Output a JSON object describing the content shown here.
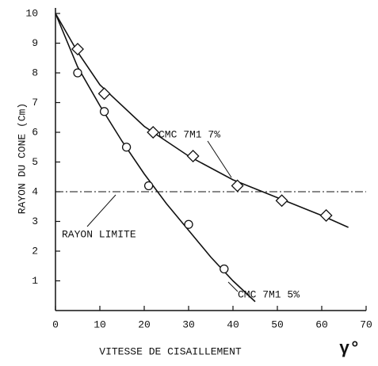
{
  "chart_data": {
    "type": "scatter",
    "y_label": "RAYON DU CONE (Cm)",
    "x_label": "VITESSE DE CISAILLEMENT",
    "x_label_symbol": "γ°",
    "xlim": [
      0,
      70
    ],
    "xticks": [
      0,
      10,
      20,
      30,
      40,
      50,
      60,
      70
    ],
    "ylim": [
      0,
      10
    ],
    "yticks": [
      1,
      2,
      3,
      4,
      5,
      6,
      7,
      8,
      9,
      10
    ],
    "color": "#111111",
    "series": [
      {
        "name": "CMC 7M1 7%",
        "marker": "diamond",
        "x": [
          5,
          11,
          22,
          31,
          41,
          51,
          61
        ],
        "values": [
          8.8,
          7.3,
          6.0,
          5.2,
          4.2,
          3.7,
          3.2
        ],
        "fit_x": [
          0,
          5,
          10,
          20,
          30,
          40,
          50,
          60,
          66
        ],
        "fit_values": [
          10,
          8.7,
          7.6,
          6.2,
          5.2,
          4.4,
          3.8,
          3.2,
          2.8
        ]
      },
      {
        "name": "CMC 7M1 5%",
        "marker": "circle",
        "x": [
          5,
          11,
          16,
          21,
          30,
          38
        ],
        "values": [
          8.0,
          6.7,
          5.5,
          4.2,
          2.9,
          1.4
        ],
        "fit_x": [
          0,
          5,
          10,
          15,
          20,
          25,
          30,
          35,
          40,
          45
        ],
        "fit_values": [
          10,
          8.2,
          6.9,
          5.7,
          4.6,
          3.6,
          2.7,
          1.8,
          1.0,
          0.3
        ]
      }
    ],
    "reference_line": {
      "label": "RAYON LIMITE",
      "y": 4
    }
  }
}
